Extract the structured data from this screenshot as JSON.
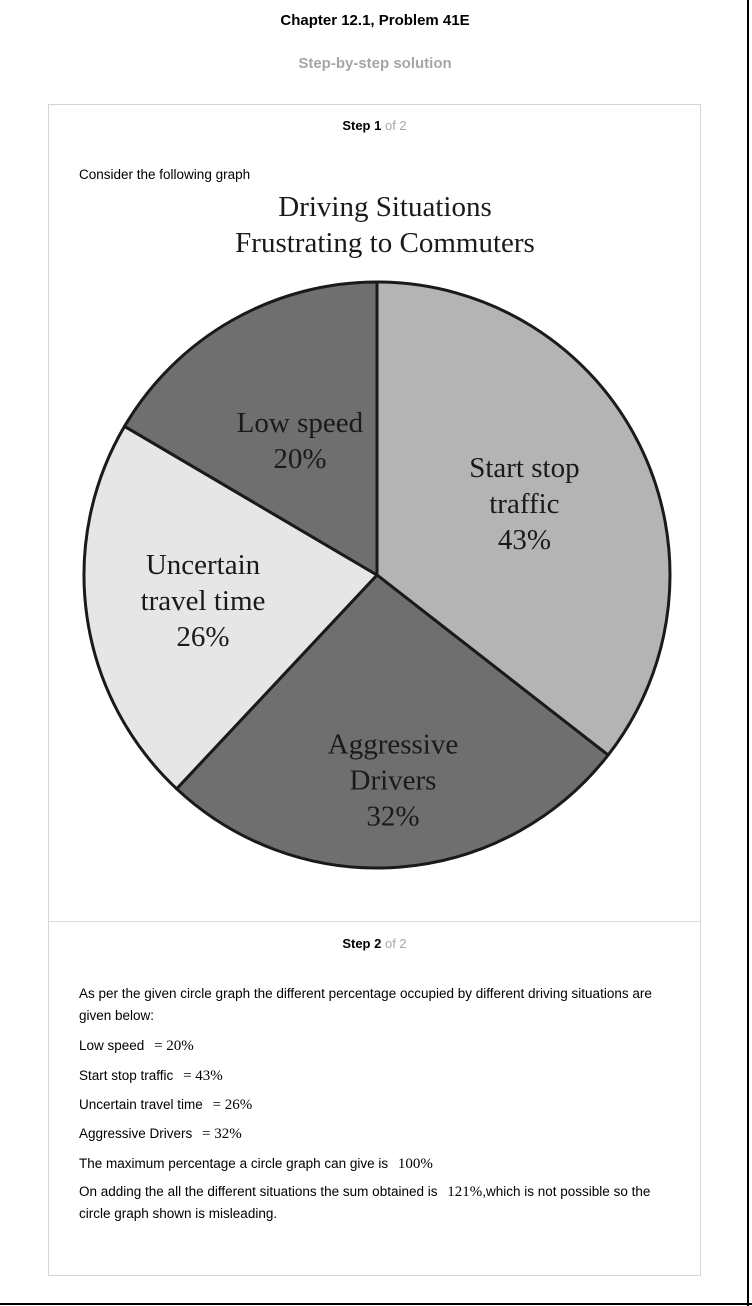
{
  "header": {
    "title": "Chapter 12.1, Problem 41E",
    "subtitle": "Step-by-step solution"
  },
  "step1": {
    "label_bold": "Step 1",
    "label_rest": "of 2",
    "intro": "Consider the following graph"
  },
  "chart_data": {
    "type": "pie",
    "title": [
      "Driving Situations",
      "Frustrating to Commuters"
    ],
    "slices": [
      {
        "label": [
          "Start stop",
          "traffic"
        ],
        "value": 43,
        "value_label": "43%",
        "color": "#b4b4b4"
      },
      {
        "label": [
          "Aggressive",
          "Drivers"
        ],
        "value": 32,
        "value_label": "32%",
        "color": "#6f6f6f"
      },
      {
        "label": [
          "Uncertain",
          "travel time"
        ],
        "value": 26,
        "value_label": "26%",
        "color": "#e6e6e6"
      },
      {
        "label": [
          "Low speed"
        ],
        "value": 20,
        "value_label": "20%",
        "color": "#6f6f6f"
      }
    ],
    "start_angle_deg": 0,
    "direction": "clockwise"
  },
  "step2": {
    "label_bold": "Step 2",
    "label_rest": "of 2",
    "intro": "As per the given circle graph the different percentage occupied by different driving situations are given below:",
    "items": [
      {
        "label": "Low speed",
        "math": "= 20%"
      },
      {
        "label": "Start stop traffic",
        "math": "= 43%"
      },
      {
        "label": "Uncertain travel time",
        "math": "= 26%"
      },
      {
        "label": "Aggressive Drivers",
        "math": "= 32%"
      }
    ],
    "max_text": "The maximum percentage a circle graph can give is",
    "max_math": "100%",
    "sum_text_before": "On adding the all the different situations the sum obtained is",
    "sum_math": "121%",
    "sum_text_after": ",which is not possible so the circle graph shown is misleading."
  }
}
